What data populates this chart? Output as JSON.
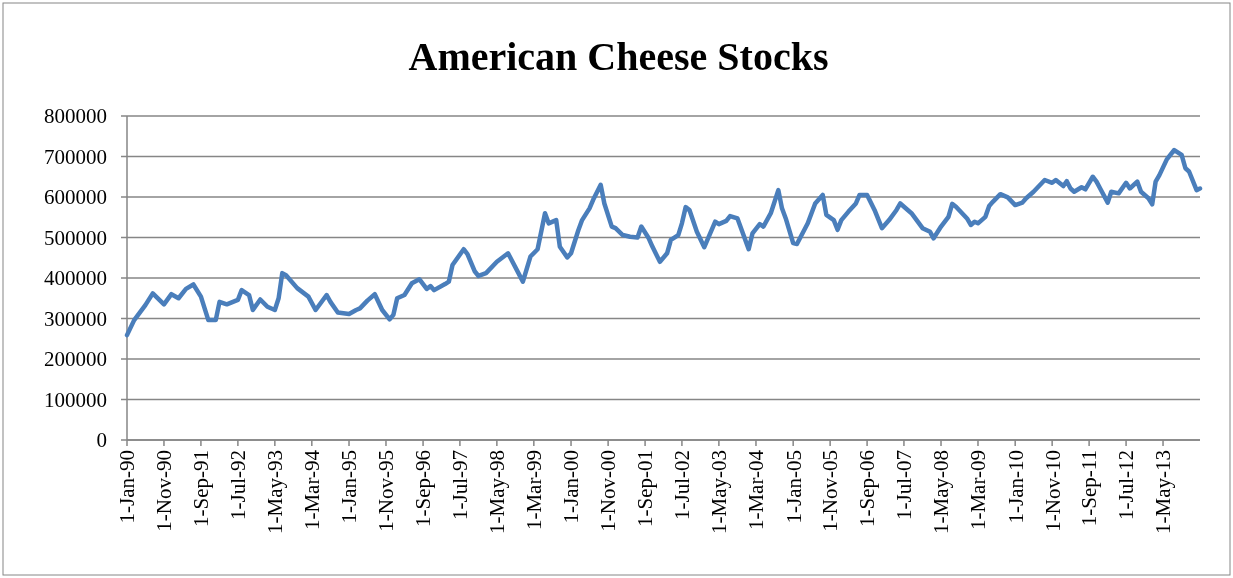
{
  "chart_data": {
    "type": "line",
    "title": "American Cheese Stocks",
    "grid": "y",
    "xlim": [
      "1990-01",
      "2014-03"
    ],
    "ylim": [
      0,
      800000
    ],
    "yticks": [
      0,
      100000,
      200000,
      300000,
      400000,
      500000,
      600000,
      700000,
      800000
    ],
    "xticks": [
      {
        "value": "1990-01",
        "label": "1-Jan-90"
      },
      {
        "value": "1990-11",
        "label": "1-Nov-90"
      },
      {
        "value": "1991-09",
        "label": "1-Sep-91"
      },
      {
        "value": "1992-07",
        "label": "1-Jul-92"
      },
      {
        "value": "1993-05",
        "label": "1-May-93"
      },
      {
        "value": "1994-03",
        "label": "1-Mar-94"
      },
      {
        "value": "1995-01",
        "label": "1-Jan-95"
      },
      {
        "value": "1995-11",
        "label": "1-Nov-95"
      },
      {
        "value": "1996-09",
        "label": "1-Sep-96"
      },
      {
        "value": "1997-07",
        "label": "1-Jul-97"
      },
      {
        "value": "1998-05",
        "label": "1-May-98"
      },
      {
        "value": "1999-03",
        "label": "1-Mar-99"
      },
      {
        "value": "2000-01",
        "label": "1-Jan-00"
      },
      {
        "value": "2000-11",
        "label": "1-Nov-00"
      },
      {
        "value": "2001-09",
        "label": "1-Sep-01"
      },
      {
        "value": "2002-07",
        "label": "1-Jul-02"
      },
      {
        "value": "2003-05",
        "label": "1-May-03"
      },
      {
        "value": "2004-03",
        "label": "1-Mar-04"
      },
      {
        "value": "2005-01",
        "label": "1-Jan-05"
      },
      {
        "value": "2005-11",
        "label": "1-Nov-05"
      },
      {
        "value": "2006-09",
        "label": "1-Sep-06"
      },
      {
        "value": "2007-07",
        "label": "1-Jul-07"
      },
      {
        "value": "2008-05",
        "label": "1-May-08"
      },
      {
        "value": "2009-03",
        "label": "1-Mar-09"
      },
      {
        "value": "2010-01",
        "label": "1-Jan-10"
      },
      {
        "value": "2010-11",
        "label": "1-Nov-10"
      },
      {
        "value": "2011-09",
        "label": "1-Sep-11"
      },
      {
        "value": "2012-07",
        "label": "1-Jul-12"
      },
      {
        "value": "2013-05",
        "label": "1-May-13"
      }
    ],
    "series": [
      {
        "color": "#4a7ebb",
        "x": [
          "1990-01",
          "1990-03",
          "1990-06",
          "1990-08",
          "1990-11",
          "1991-01",
          "1991-03",
          "1991-05",
          "1991-07",
          "1991-09",
          "1991-11",
          "1992-01",
          "1992-02",
          "1992-04",
          "1992-07",
          "1992-08",
          "1992-10",
          "1992-11",
          "1993-01",
          "1993-03",
          "1993-05",
          "1993-06",
          "1993-07",
          "1993-08",
          "1993-11",
          "1994-02",
          "1994-04",
          "1994-07",
          "1994-08",
          "1994-10",
          "1995-01",
          "1995-03",
          "1995-04",
          "1995-06",
          "1995-08",
          "1995-10",
          "1995-12",
          "1996-01",
          "1996-02",
          "1996-04",
          "1996-06",
          "1996-08",
          "1996-10",
          "1996-11",
          "1996-12",
          "1997-03",
          "1997-04",
          "1997-05",
          "1997-08",
          "1997-09",
          "1997-11",
          "1997-12",
          "1998-02",
          "1998-05",
          "1998-08",
          "1998-12",
          "1999-02",
          "1999-04",
          "1999-06",
          "1999-07",
          "1999-09",
          "1999-10",
          "1999-12",
          "2000-01",
          "2000-03",
          "2000-04",
          "2000-06",
          "2000-07",
          "2000-09",
          "2000-10",
          "2000-12",
          "2001-01",
          "2001-03",
          "2001-05",
          "2001-07",
          "2001-08",
          "2001-10",
          "2001-11",
          "2002-01",
          "2002-03",
          "2002-04",
          "2002-06",
          "2002-07",
          "2002-08",
          "2002-09",
          "2002-11",
          "2003-01",
          "2003-04",
          "2003-05",
          "2003-07",
          "2003-08",
          "2003-10",
          "2004-01",
          "2004-02",
          "2004-04",
          "2004-05",
          "2004-07",
          "2004-09",
          "2004-10",
          "2004-11",
          "2005-01",
          "2005-02",
          "2005-05",
          "2005-07",
          "2005-09",
          "2005-10",
          "2005-12",
          "2006-01",
          "2006-02",
          "2006-04",
          "2006-06",
          "2006-07",
          "2006-09",
          "2006-11",
          "2007-01",
          "2007-03",
          "2007-05",
          "2007-06",
          "2007-08",
          "2007-09",
          "2007-12",
          "2008-02",
          "2008-03",
          "2008-05",
          "2008-07",
          "2008-08",
          "2008-09",
          "2008-12",
          "2009-01",
          "2009-02",
          "2009-03",
          "2009-05",
          "2009-06",
          "2009-07",
          "2009-09",
          "2009-11",
          "2010-01",
          "2010-03",
          "2010-04",
          "2010-06",
          "2010-09",
          "2010-11",
          "2010-12",
          "2011-02",
          "2011-03",
          "2011-04",
          "2011-05",
          "2011-07",
          "2011-08",
          "2011-10",
          "2011-11",
          "2011-12",
          "2012-02",
          "2012-03",
          "2012-05",
          "2012-07",
          "2012-08",
          "2012-10",
          "2012-11",
          "2013-01",
          "2013-02",
          "2013-03",
          "2013-04",
          "2013-06",
          "2013-08",
          "2013-10",
          "2013-11",
          "2013-12",
          "2014-02",
          "2014-03"
        ],
        "values": [
          259000,
          296000,
          333000,
          362000,
          335000,
          360000,
          350000,
          373000,
          384000,
          354000,
          296000,
          296000,
          341000,
          335000,
          346000,
          370000,
          358000,
          321000,
          347000,
          329000,
          321000,
          350000,
          412000,
          407000,
          375000,
          354000,
          321000,
          358000,
          341000,
          315000,
          311000,
          321000,
          325000,
          344000,
          360000,
          321000,
          298000,
          309000,
          350000,
          358000,
          387000,
          397000,
          373000,
          380000,
          370000,
          385000,
          391000,
          432000,
          471000,
          459000,
          416000,
          405000,
          412000,
          440000,
          461000,
          391000,
          453000,
          471000,
          560000,
          535000,
          543000,
          477000,
          451000,
          461000,
          518000,
          543000,
          572000,
          593000,
          630000,
          584000,
          527000,
          523000,
          506000,
          502000,
          500000,
          527000,
          498000,
          477000,
          440000,
          461000,
          494000,
          506000,
          535000,
          575000,
          568000,
          514000,
          476000,
          539000,
          533000,
          541000,
          553000,
          547000,
          471000,
          510000,
          533000,
          527000,
          560000,
          617000,
          572000,
          547000,
          486000,
          484000,
          535000,
          584000,
          605000,
          556000,
          543000,
          519000,
          543000,
          564000,
          584000,
          605000,
          605000,
          568000,
          523000,
          543000,
          568000,
          584000,
          568000,
          560000,
          523000,
          514000,
          498000,
          527000,
          551000,
          583000,
          576000,
          547000,
          531000,
          539000,
          535000,
          551000,
          578000,
          588000,
          607000,
          599000,
          580000,
          586000,
          597000,
          613000,
          642000,
          635000,
          642000,
          627000,
          639000,
          621000,
          613000,
          624000,
          619000,
          650000,
          638000,
          621000,
          586000,
          613000,
          609000,
          635000,
          621000,
          638000,
          613000,
          597000,
          582000,
          638000,
          654000,
          693000,
          716000,
          704000,
          671000,
          663000,
          617000,
          621000
        ]
      }
    ]
  }
}
